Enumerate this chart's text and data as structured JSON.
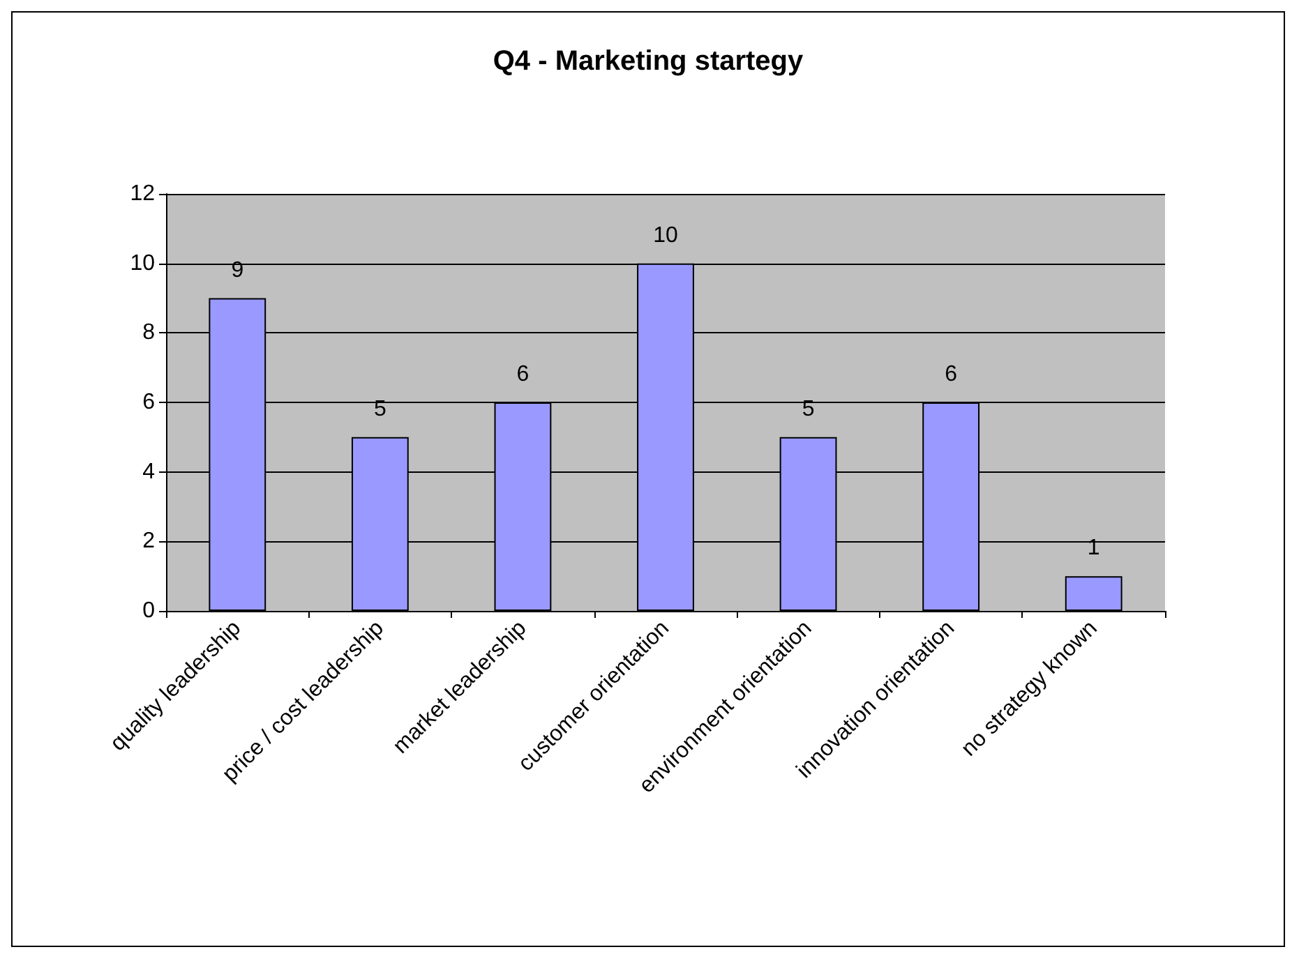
{
  "chart_data": {
    "type": "bar",
    "title": "Q4 - Marketing startegy",
    "categories": [
      "quality leadership",
      "price / cost leadership",
      "market leadership",
      "customer orientation",
      "environment orientation",
      "innovation orientation",
      "no strategy known"
    ],
    "values": [
      9,
      5,
      6,
      10,
      5,
      6,
      1
    ],
    "color": "#9999ff",
    "ylim": [
      0,
      12
    ],
    "yticks": [
      0,
      2,
      4,
      6,
      8,
      10,
      12
    ],
    "grid": "y",
    "data_labels": true
  }
}
